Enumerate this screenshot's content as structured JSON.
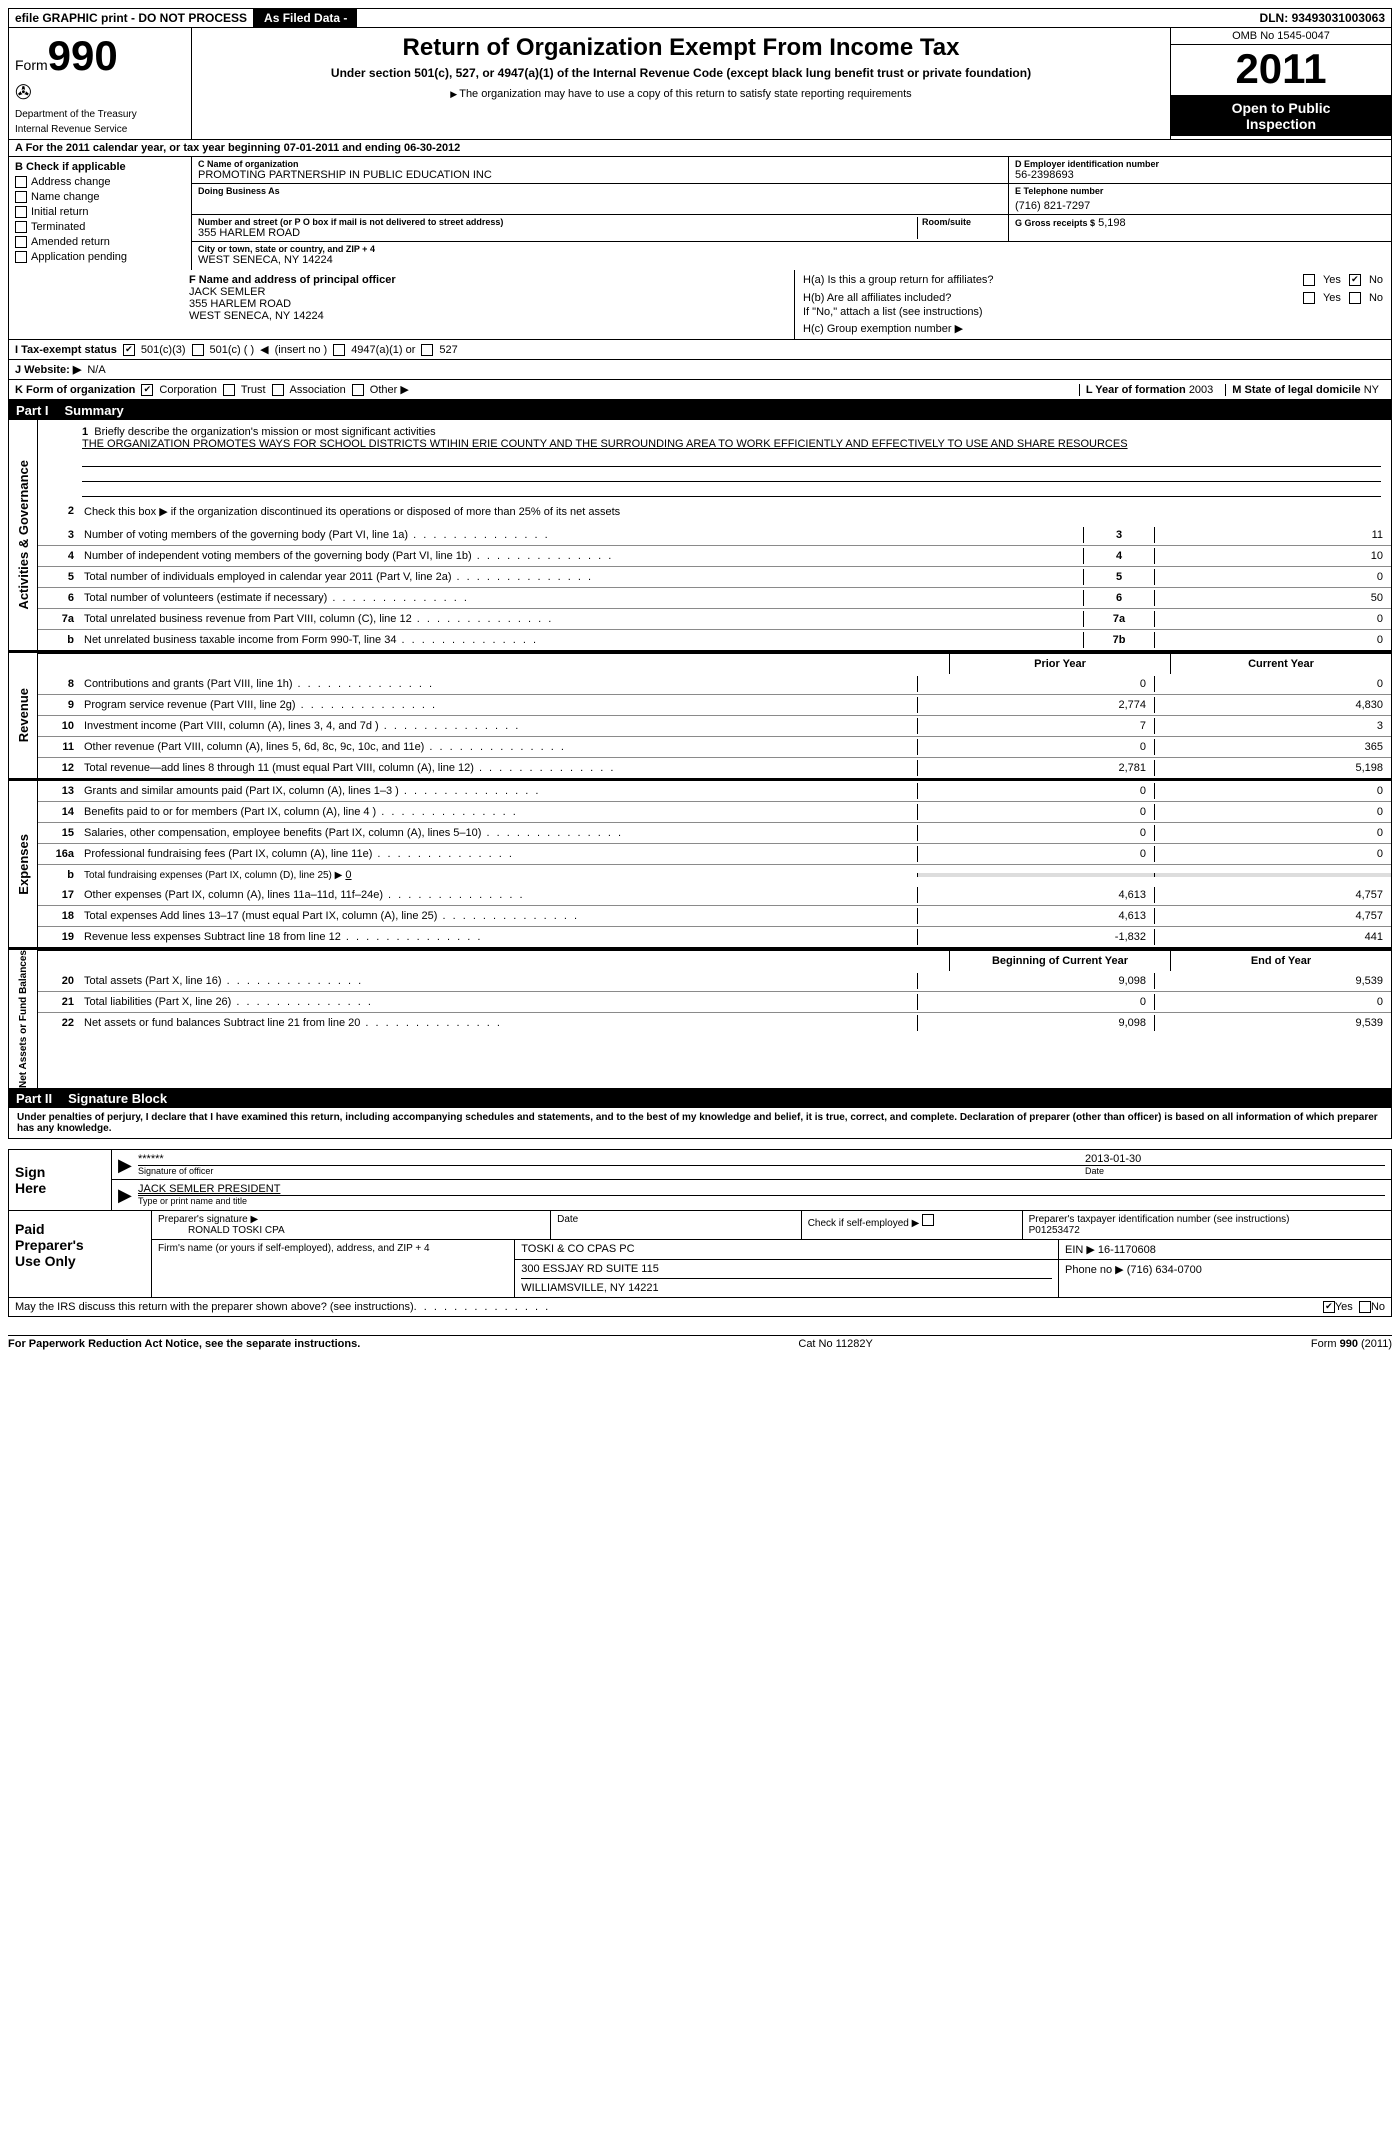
{
  "topbar": {
    "efile": "efile GRAPHIC print - DO NOT PROCESS",
    "asfiled": "As Filed Data -",
    "dln_label": "DLN:",
    "dln": "93493031003063"
  },
  "header": {
    "form_word": "Form",
    "form_num": "990",
    "dept1": "Department of the Treasury",
    "dept2": "Internal Revenue Service",
    "title": "Return of Organization Exempt From Income Tax",
    "subtitle": "Under section 501(c), 527, or 4947(a)(1) of the Internal Revenue Code (except black lung benefit trust or private foundation)",
    "note": "The organization may have to use a copy of this return to satisfy state reporting requirements",
    "omb": "OMB No 1545-0047",
    "year": "2011",
    "open1": "Open to Public",
    "open2": "Inspection"
  },
  "lineA": "A  For the 2011 calendar year, or tax year beginning 07-01-2011    and ending 06-30-2012",
  "B": {
    "head": "B Check if applicable",
    "items": [
      "Address change",
      "Name change",
      "Initial return",
      "Terminated",
      "Amended return",
      "Application pending"
    ]
  },
  "C": {
    "name_label": "C Name of organization",
    "name": "PROMOTING PARTNERSHIP IN PUBLIC EDUCATION INC",
    "dba_label": "Doing Business As",
    "street_label": "Number and street (or P O  box if mail is not delivered to street address)",
    "room_label": "Room/suite",
    "street": "355 HARLEM ROAD",
    "city_label": "City or town, state or country, and ZIP + 4",
    "city": "WEST SENECA, NY  14224"
  },
  "D": {
    "label": "D Employer identification number",
    "val": "56-2398693"
  },
  "E": {
    "label": "E Telephone number",
    "val": "(716) 821-7297"
  },
  "G": {
    "label": "G Gross receipts $",
    "val": "5,198"
  },
  "F": {
    "label": "F   Name and address of principal officer",
    "name": "JACK SEMLER",
    "street": "355 HARLEM ROAD",
    "city": "WEST SENECA, NY  14224"
  },
  "H": {
    "a": "H(a)  Is this a group return for affiliates?",
    "b": "H(b)  Are all affiliates included?",
    "b_note": "If \"No,\" attach a list  (see instructions)",
    "c": "H(c)   Group exemption number",
    "yes": "Yes",
    "no": "No"
  },
  "I": {
    "label": "I   Tax-exempt status",
    "o1": "501(c)(3)",
    "o2": "501(c) (   )",
    "insert": "(insert no )",
    "o3": "4947(a)(1) or",
    "o4": "527"
  },
  "J": {
    "label": "J   Website: ▶",
    "val": "N/A"
  },
  "K": {
    "label": "K Form of organization",
    "o1": "Corporation",
    "o2": "Trust",
    "o3": "Association",
    "o4": "Other ▶"
  },
  "L": {
    "label": "L Year of formation",
    "val": "2003"
  },
  "M": {
    "label": "M State of legal domicile",
    "val": "NY"
  },
  "part1": {
    "tag": "Part I",
    "title": "Summary"
  },
  "gov": {
    "label": "Activities & Governance",
    "l1": "Briefly describe the organization's mission or most significant activities",
    "mission": "THE ORGANIZATION PROMOTES WAYS FOR SCHOOL DISTRICTS WTIHIN ERIE COUNTY AND THE SURROUNDING AREA TO WORK EFFICIENTLY AND EFFECTIVELY TO USE AND SHARE RESOURCES",
    "l2": "Check this box ▶   if the organization discontinued its operations or disposed of more than 25% of its net assets",
    "rows": [
      {
        "n": "3",
        "d": "Number of voting members of the governing body (Part VI, line 1a)",
        "c": "3",
        "v": "11"
      },
      {
        "n": "4",
        "d": "Number of independent voting members of the governing body (Part VI, line 1b)",
        "c": "4",
        "v": "10"
      },
      {
        "n": "5",
        "d": "Total number of individuals employed in calendar year 2011 (Part V, line 2a)",
        "c": "5",
        "v": "0"
      },
      {
        "n": "6",
        "d": "Total number of volunteers (estimate if necessary)",
        "c": "6",
        "v": "50"
      },
      {
        "n": "7a",
        "d": "Total unrelated business revenue from Part VIII, column (C), line 12",
        "c": "7a",
        "v": "0"
      },
      {
        "n": "b",
        "d": "Net unrelated business taxable income from Form 990-T, line 34",
        "c": "7b",
        "v": "0"
      }
    ]
  },
  "colhead": {
    "prior": "Prior Year",
    "current": "Current Year"
  },
  "rev": {
    "label": "Revenue",
    "rows": [
      {
        "n": "8",
        "d": "Contributions and grants (Part VIII, line 1h)",
        "p": "0",
        "c": "0"
      },
      {
        "n": "9",
        "d": "Program service revenue (Part VIII, line 2g)",
        "p": "2,774",
        "c": "4,830"
      },
      {
        "n": "10",
        "d": "Investment income (Part VIII, column (A), lines 3, 4, and 7d )",
        "p": "7",
        "c": "3"
      },
      {
        "n": "11",
        "d": "Other revenue (Part VIII, column (A), lines 5, 6d, 8c, 9c, 10c, and 11e)",
        "p": "0",
        "c": "365"
      },
      {
        "n": "12",
        "d": "Total revenue—add lines 8 through 11 (must equal Part VIII, column (A), line 12)",
        "p": "2,781",
        "c": "5,198"
      }
    ]
  },
  "exp": {
    "label": "Expenses",
    "rows": [
      {
        "n": "13",
        "d": "Grants and similar amounts paid (Part IX, column (A), lines 1–3 )",
        "p": "0",
        "c": "0"
      },
      {
        "n": "14",
        "d": "Benefits paid to or for members (Part IX, column (A), line 4 )",
        "p": "0",
        "c": "0"
      },
      {
        "n": "15",
        "d": "Salaries, other compensation, employee benefits (Part IX, column (A), lines 5–10)",
        "p": "0",
        "c": "0"
      },
      {
        "n": "16a",
        "d": "Professional fundraising fees (Part IX, column (A), line 11e)",
        "p": "0",
        "c": "0"
      }
    ],
    "l16b": "Total fundraising expenses (Part IX, column (D), line 25) ▶",
    "l16b_val": "0",
    "rows2": [
      {
        "n": "17",
        "d": "Other expenses (Part IX, column (A), lines 11a–11d, 11f–24e)",
        "p": "4,613",
        "c": "4,757"
      },
      {
        "n": "18",
        "d": "Total expenses  Add lines 13–17 (must equal Part IX, column (A), line 25)",
        "p": "4,613",
        "c": "4,757"
      },
      {
        "n": "19",
        "d": "Revenue less expenses  Subtract line 18 from line 12",
        "p": "-1,832",
        "c": "441"
      }
    ]
  },
  "net": {
    "label": "Net Assets or Fund Balances",
    "head": {
      "b": "Beginning of Current Year",
      "e": "End of Year"
    },
    "rows": [
      {
        "n": "20",
        "d": "Total assets (Part X, line 16)",
        "p": "9,098",
        "c": "9,539"
      },
      {
        "n": "21",
        "d": "Total liabilities (Part X, line 26)",
        "p": "0",
        "c": "0"
      },
      {
        "n": "22",
        "d": "Net assets or fund balances  Subtract line 21 from line 20",
        "p": "9,098",
        "c": "9,539"
      }
    ]
  },
  "part2": {
    "tag": "Part II",
    "title": "Signature Block"
  },
  "perjury": "Under penalties of perjury, I declare that I have examined this return, including accompanying schedules and statements, and to the best of my knowledge and belief, it is true, correct, and complete. Declaration of preparer (other than officer) is based on all information of which preparer has any knowledge.",
  "sign": {
    "left1": "Sign",
    "left2": "Here",
    "stars": "******",
    "sig_label": "Signature of officer",
    "date": "2013-01-30",
    "date_label": "Date",
    "name": "JACK SEMLER PRESIDENT",
    "name_label": "Type or print name and title"
  },
  "prep": {
    "left1": "Paid",
    "left2": "Preparer's",
    "left3": "Use Only",
    "sig_label": "Preparer's signature ▶",
    "name": "RONALD TOSKI CPA",
    "date_label": "Date",
    "self_label": "Check if self-employed ▶",
    "ptin_label": "Preparer's taxpayer identification number (see instructions)",
    "ptin": "P01253472",
    "firm_label": "Firm's name (or yours if self-employed), address, and ZIP + 4",
    "firm": "TOSKI & CO CPAS PC",
    "addr1": "300 ESSJAY RD SUITE 115",
    "addr2": "WILLIAMSVILLE, NY  14221",
    "ein_label": "EIN ▶",
    "ein": "16-1170608",
    "phone_label": "Phone no ▶",
    "phone": "(716) 634-0700"
  },
  "discuss": {
    "text": "May the IRS discuss this return with the preparer shown above? (see instructions)",
    "yes": "Yes",
    "no": "No"
  },
  "footer": {
    "left": "For Paperwork Reduction Act Notice, see the separate instructions.",
    "mid": "Cat No 11282Y",
    "right": "Form 990 (2011)"
  }
}
